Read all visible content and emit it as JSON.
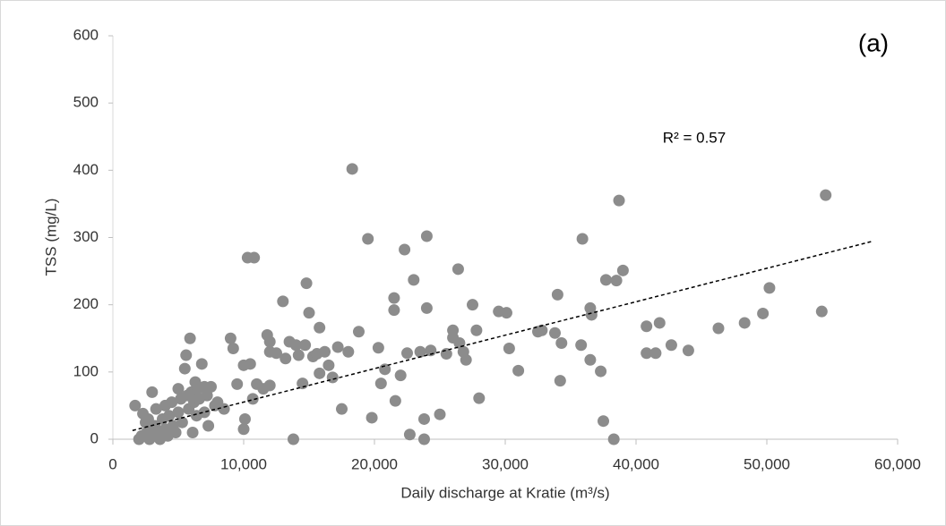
{
  "chart_data": {
    "type": "scatter",
    "title": "(a)",
    "x_label": "Daily discharge at Kratie (m³/s)",
    "y_label": "TSS (mg/L)",
    "annotation": "R² = 0.57",
    "xlim": [
      0,
      60000
    ],
    "ylim": [
      0,
      600
    ],
    "xticks": [
      0,
      {
        "value": 10000,
        "label": "10,000"
      },
      {
        "value": 20000,
        "label": "20,000"
      },
      {
        "value": 30000,
        "label": "30,000"
      },
      {
        "value": 40000,
        "label": "40,000"
      },
      {
        "value": 50000,
        "label": "50,000"
      },
      {
        "value": 60000,
        "label": "60,000"
      }
    ],
    "yticks": [
      0,
      100,
      200,
      300,
      400,
      500,
      600
    ],
    "grid": false,
    "color": "#8c8c8c",
    "trendline": {
      "x": [
        1500,
        58000
      ],
      "y": [
        13,
        294
      ],
      "color": "#000000"
    },
    "x": [
      1700,
      2000,
      2200,
      2300,
      2500,
      2600,
      2700,
      2800,
      3000,
      3100,
      3200,
      3300,
      3500,
      3600,
      3800,
      4000,
      4000,
      4200,
      4300,
      4500,
      4600,
      4800,
      5000,
      5000,
      5200,
      5300,
      5500,
      5600,
      5700,
      5800,
      5900,
      6000,
      6100,
      6200,
      6300,
      6400,
      6500,
      6600,
      6800,
      7000,
      7000,
      7200,
      7300,
      7500,
      7800,
      8000,
      8500,
      9000,
      9200,
      9500,
      10000,
      10000,
      10100,
      10300,
      10500,
      10800,
      10700,
      11000,
      11500,
      11800,
      12000,
      12000,
      12000,
      12500,
      13000,
      13200,
      13500,
      13800,
      14000,
      14200,
      14500,
      14700,
      14800,
      15000,
      15300,
      15600,
      15800,
      15800,
      16200,
      16500,
      16800,
      17200,
      17500,
      18000,
      18300,
      18800,
      19500,
      19800,
      20300,
      20500,
      20800,
      21500,
      21500,
      21600,
      22000,
      22300,
      22500,
      22700,
      23000,
      23500,
      23800,
      23800,
      24000,
      24000,
      24300,
      25000,
      25500,
      26000,
      26000,
      26400,
      26500,
      26800,
      27000,
      27500,
      27800,
      28000,
      29500,
      30100,
      30300,
      31000,
      32500,
      32800,
      33800,
      34000,
      34200,
      34300,
      35900,
      35800,
      36500,
      36500,
      36600,
      37300,
      37500,
      37700,
      38300,
      38500,
      38700,
      39000,
      40800,
      40800,
      41500,
      41800,
      42700,
      44000,
      46300,
      48300,
      49700,
      50200,
      54200,
      54500
    ],
    "y": [
      50,
      0,
      5,
      38,
      25,
      10,
      30,
      0,
      70,
      5,
      20,
      45,
      10,
      0,
      30,
      15,
      50,
      5,
      35,
      55,
      20,
      10,
      75,
      40,
      60,
      25,
      105,
      125,
      65,
      45,
      150,
      70,
      10,
      55,
      85,
      35,
      75,
      60,
      112,
      78,
      40,
      65,
      20,
      78,
      50,
      55,
      45,
      150,
      135,
      82,
      110,
      15,
      30,
      270,
      112,
      270,
      60,
      82,
      75,
      155,
      145,
      80,
      130,
      128,
      205,
      120,
      145,
      0,
      140,
      125,
      83,
      140,
      232,
      188,
      123,
      127,
      98,
      166,
      130,
      110,
      92,
      137,
      45,
      130,
      402,
      160,
      298,
      32,
      136,
      83,
      104,
      210,
      192,
      57,
      95,
      282,
      128,
      7,
      237,
      130,
      30,
      0,
      302,
      195,
      132,
      37,
      127,
      162,
      151,
      253,
      143,
      130,
      118,
      200,
      162,
      61,
      190,
      188,
      135,
      102,
      160,
      162,
      158,
      215,
      87,
      143,
      298,
      140,
      118,
      195,
      185,
      101,
      27,
      237,
      0,
      236,
      355,
      251,
      168,
      128,
      128,
      173,
      140,
      132,
      165,
      173,
      187,
      225,
      190,
      363
    ]
  }
}
